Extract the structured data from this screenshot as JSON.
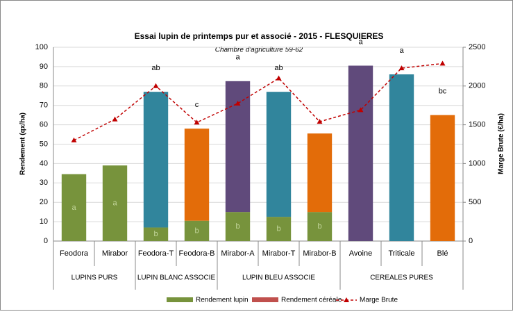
{
  "chart_data": {
    "type": "bar",
    "title": "Essai lupin de printemps  pur et associé - 2015 - FLESQUIERES",
    "subtitle": "Chambre d'agriculture  59-62",
    "y_label": "Rendement (qx/ha)",
    "y2_label": "Marge Brute (€/ha)",
    "categories": [
      "Feodora",
      "Mirabor",
      "Feodora-T",
      "Feodora-B",
      "Mirabor-A",
      "Mirabor-T",
      "Mirabor-B",
      "Avoine",
      "Triticale",
      "Blé"
    ],
    "groups": [
      {
        "name": "LUPINS PURS",
        "count": 2
      },
      {
        "name": "LUPIN BLANC ASSOCIE",
        "count": 2
      },
      {
        "name": "LUPIN BLEU ASSOCIE",
        "count": 3
      },
      {
        "name": "CEREALES PURES",
        "count": 3
      }
    ],
    "stacked": true,
    "series": [
      {
        "name": "Rendement lupin",
        "color": "#77933c",
        "values": [
          34.5,
          39,
          7,
          10.5,
          15,
          12.5,
          15,
          0,
          0,
          0
        ],
        "letters": [
          "a",
          "a",
          "b",
          "b",
          "b",
          "b",
          "b",
          null,
          null,
          null
        ]
      },
      {
        "name": "Rendement céréale",
        "color": "#c0504d",
        "colors": [
          null,
          null,
          "#31859c",
          "#e36c09",
          "#604a7b",
          "#31859c",
          "#e36c09",
          "#604a7b",
          "#31859c",
          "#e36c09"
        ],
        "values": [
          0,
          0,
          70,
          47.5,
          67.5,
          64.5,
          40.5,
          90.5,
          86,
          65
        ],
        "letters": [
          null,
          null,
          "ab",
          "c",
          "a",
          "ab",
          null,
          "a",
          "a",
          "bc"
        ]
      },
      {
        "name": "Marge Brute",
        "type": "line",
        "axis": "y2",
        "color": "#c00000",
        "values": [
          1300,
          1570,
          2000,
          1530,
          1775,
          2100,
          1540,
          1690,
          2230,
          2290
        ]
      }
    ],
    "ylim": [
      0,
      100
    ],
    "yticks": [
      0,
      10,
      20,
      30,
      40,
      50,
      60,
      70,
      80,
      90,
      100
    ],
    "y2lim": [
      0,
      2500
    ],
    "y2ticks": [
      0,
      500,
      1000,
      1500,
      2000,
      2500
    ],
    "grid": true,
    "legend": "bottom"
  }
}
